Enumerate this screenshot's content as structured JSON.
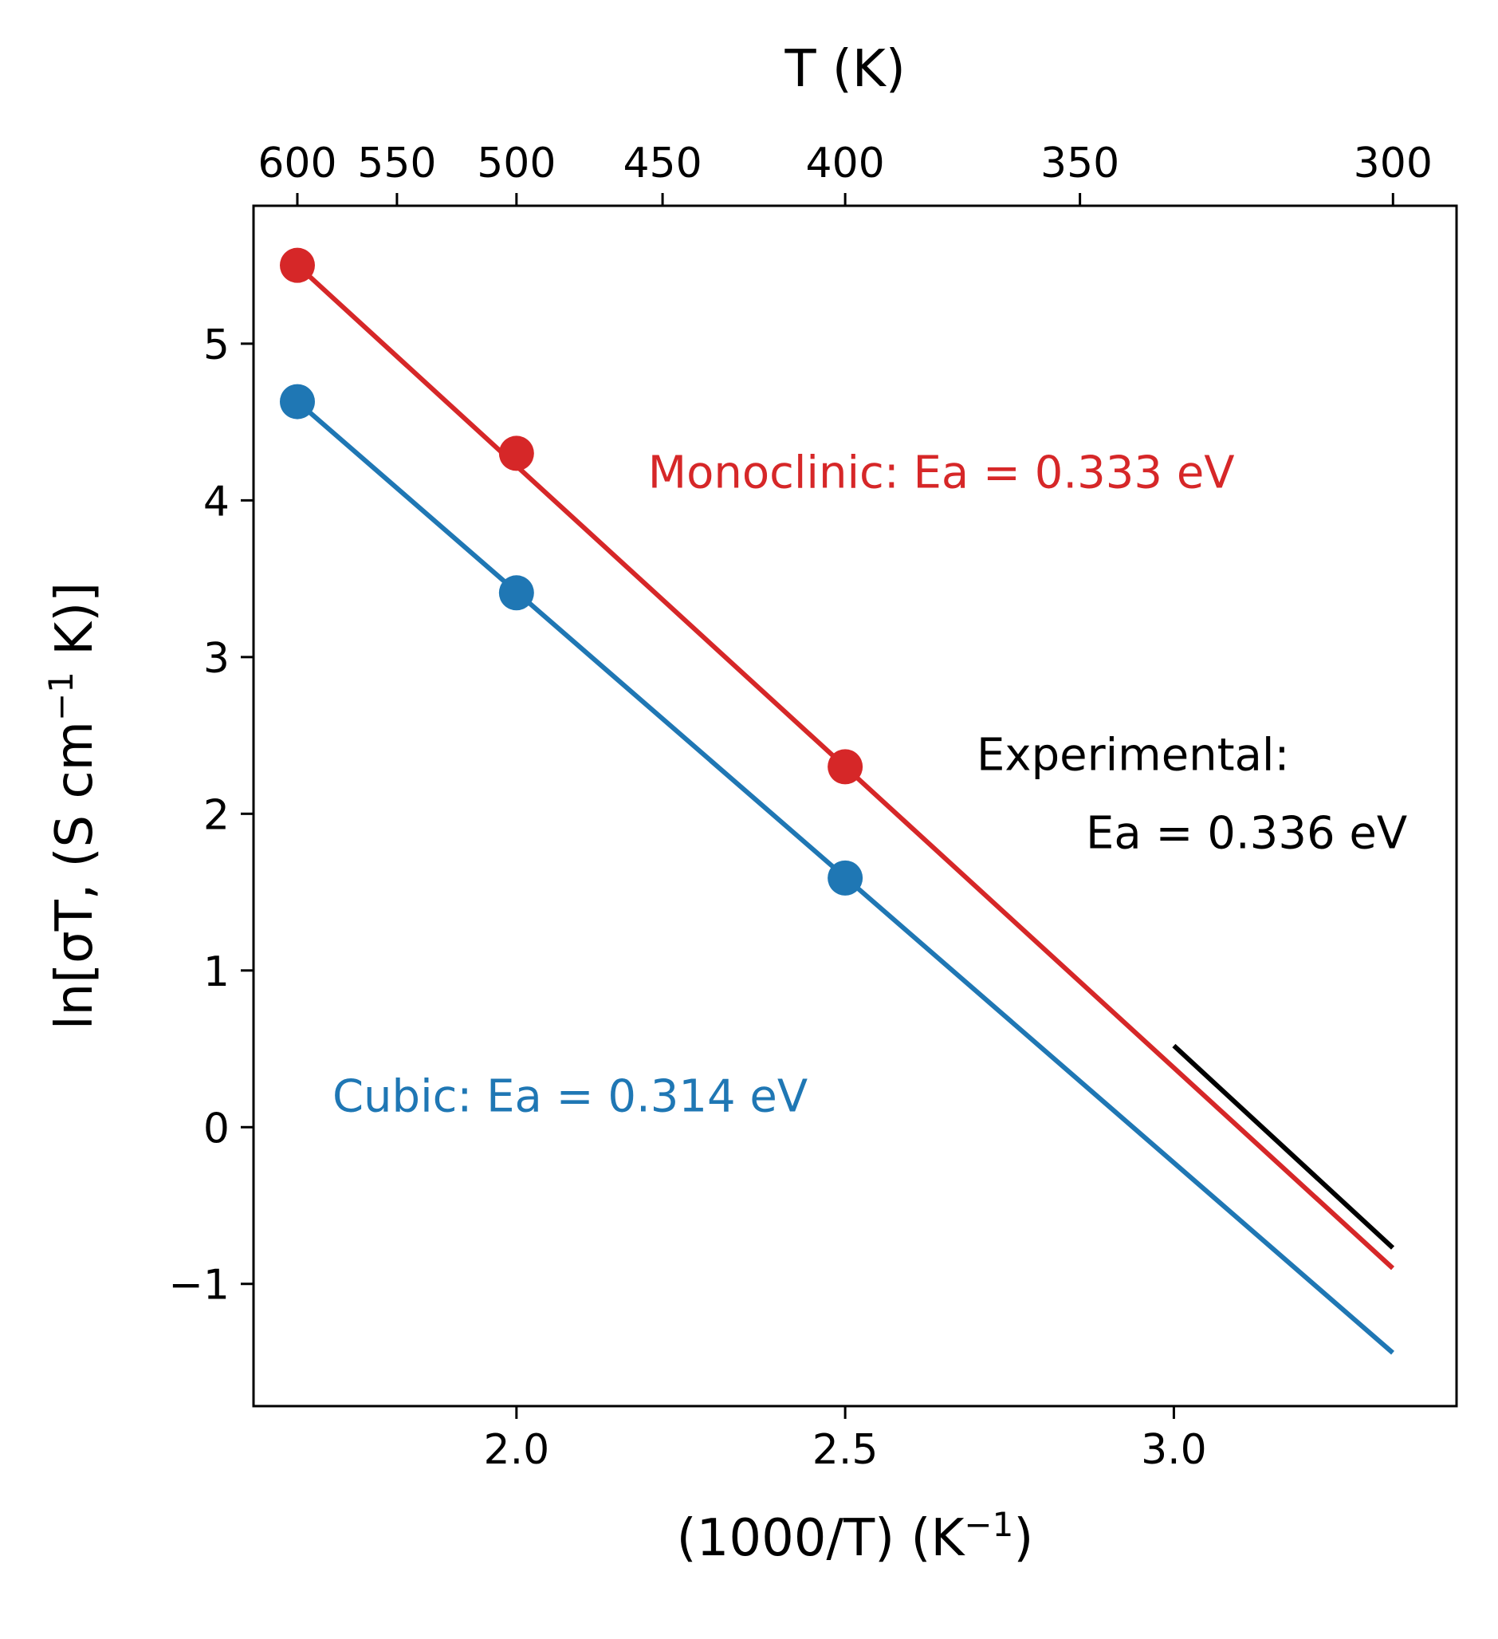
{
  "chart_data": {
    "type": "line",
    "xlabel": "(1000/T) (K",
    "xlabel_sup": "−1",
    "xlabel_tail": ")",
    "ylabel": "ln[σT, (S cm",
    "ylabel_sup": "−1",
    "ylabel_tail": " K)]",
    "top_axis_label": "T (K)",
    "xlim": [
      1.6,
      3.43
    ],
    "ylim": [
      -1.78,
      5.88
    ],
    "xticks": [
      2.0,
      2.5,
      3.0
    ],
    "xtick_labels": [
      "2.0",
      "2.5",
      "3.0"
    ],
    "yticks": [
      -1,
      0,
      1,
      2,
      3,
      4,
      5
    ],
    "ytick_labels": [
      "−1",
      "0",
      "1",
      "2",
      "3",
      "4",
      "5"
    ],
    "top_ticks_T": [
      600,
      550,
      500,
      450,
      400,
      350,
      300
    ],
    "top_tick_labels": [
      "600",
      "550",
      "500",
      "450",
      "400",
      "350",
      "300"
    ],
    "series": [
      {
        "name": "Monoclinic",
        "color": "#d62728",
        "points_x": [
          1.6667,
          2.0,
          2.5
        ],
        "points_y": [
          5.5,
          4.3,
          2.3
        ],
        "fit_x": [
          1.6667,
          3.333
        ],
        "fit_y": [
          5.5,
          -0.9
        ]
      },
      {
        "name": "Cubic",
        "color": "#1f77b4",
        "points_x": [
          1.6667,
          2.0,
          2.5
        ],
        "points_y": [
          4.63,
          3.41,
          1.59
        ],
        "fit_x": [
          1.6667,
          3.333
        ],
        "fit_y": [
          4.63,
          -1.44
        ]
      },
      {
        "name": "Experimental",
        "color": "#000000",
        "points_x": [],
        "points_y": [],
        "fit_x": [
          3.0,
          3.333
        ],
        "fit_y": [
          0.52,
          -0.77
        ]
      }
    ],
    "annotations": [
      {
        "text": "Monoclinic: Ea = 0.333 eV",
        "x": 2.2,
        "y": 4.08,
        "color": "#d62728",
        "align": "start"
      },
      {
        "text": "Experimental:",
        "x": 2.7,
        "y": 2.28,
        "color": "#000000",
        "align": "start"
      },
      {
        "text": "Ea = 0.336 eV",
        "x": 3.355,
        "y": 1.78,
        "color": "#000000",
        "align": "end"
      },
      {
        "text": "Cubic: Ea = 0.314 eV",
        "x": 1.72,
        "y": 0.1,
        "color": "#1f77b4",
        "align": "start"
      }
    ]
  }
}
